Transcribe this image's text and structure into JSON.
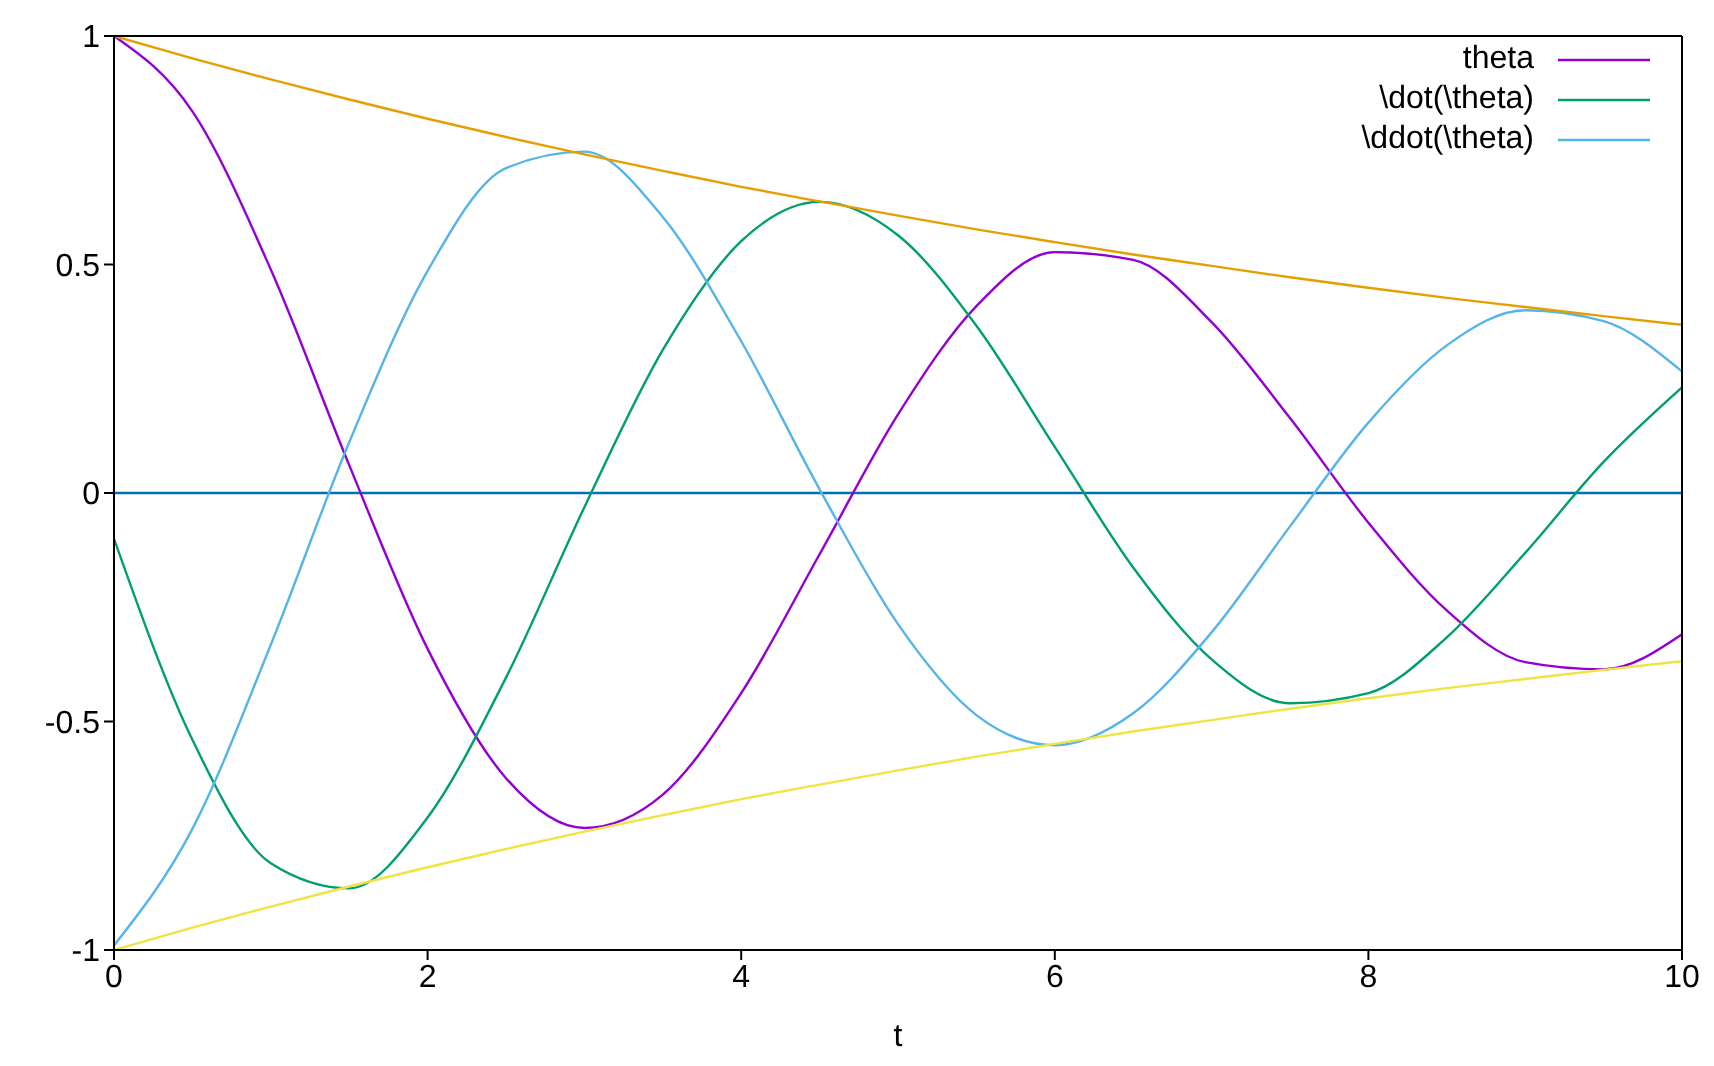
{
  "chart_data": {
    "type": "line",
    "xlabel": "t",
    "x": [
      0,
      0.5,
      1,
      1.5,
      2,
      2.5,
      3,
      3.5,
      4,
      4.5,
      5,
      5.5,
      6,
      6.5,
      7,
      7.5,
      8,
      8.5,
      9,
      9.5,
      10
    ],
    "series": [
      {
        "name": "theta",
        "color": "#9400d3",
        "values": [
          1,
          0.835,
          0.489,
          0.061,
          -0.341,
          -0.624,
          -0.733,
          -0.66,
          -0.438,
          -0.134,
          0.172,
          0.409,
          0.527,
          0.51,
          0.374,
          0.164,
          -0.065,
          -0.257,
          -0.37,
          -0.386,
          -0.309
        ]
      },
      {
        "name": "\\dot(\\theta)",
        "color": "#009e73",
        "values": [
          -0.1,
          -0.54,
          -0.81,
          -0.865,
          -0.71,
          -0.404,
          -0.031,
          0.313,
          0.551,
          0.637,
          0.564,
          0.366,
          0.101,
          -0.163,
          -0.364,
          -0.46,
          -0.438,
          -0.316,
          -0.131,
          0.068,
          0.231
        ]
      },
      {
        "name": "\\ddot(\\theta)",
        "color": "#56b4e9",
        "values": [
          -0.99,
          -0.735,
          -0.332,
          0.111,
          0.486,
          0.711,
          0.747,
          0.604,
          0.332,
          0.008,
          -0.287,
          -0.486,
          -0.552,
          -0.482,
          -0.305,
          -0.073,
          0.154,
          0.323,
          0.4,
          0.376,
          0.266
        ]
      },
      {
        "color": "#e69f00",
        "values": [
          1,
          0.951,
          0.905,
          0.861,
          0.819,
          0.779,
          0.741,
          0.705,
          0.67,
          0.638,
          0.607,
          0.577,
          0.549,
          0.522,
          0.497,
          0.472,
          0.449,
          0.427,
          0.407,
          0.387,
          0.368
        ]
      },
      {
        "color": "#f0e442",
        "values": [
          -1,
          -0.951,
          -0.905,
          -0.861,
          -0.819,
          -0.779,
          -0.741,
          -0.705,
          -0.67,
          -0.638,
          -0.607,
          -0.577,
          -0.549,
          -0.522,
          -0.497,
          -0.472,
          -0.449,
          -0.427,
          -0.407,
          -0.387,
          -0.368
        ]
      }
    ],
    "ref_lines": [
      {
        "axis": "y",
        "value": 0,
        "color": "#0072b2"
      }
    ],
    "xlim": [
      0,
      10
    ],
    "xticks": [
      0,
      2,
      4,
      6,
      8,
      10
    ],
    "ylim": [
      -1,
      1
    ],
    "yticks": [
      -1,
      -0.5,
      0,
      0.5,
      1
    ],
    "legend": "top right",
    "marker": "none",
    "line_style": "solid"
  }
}
